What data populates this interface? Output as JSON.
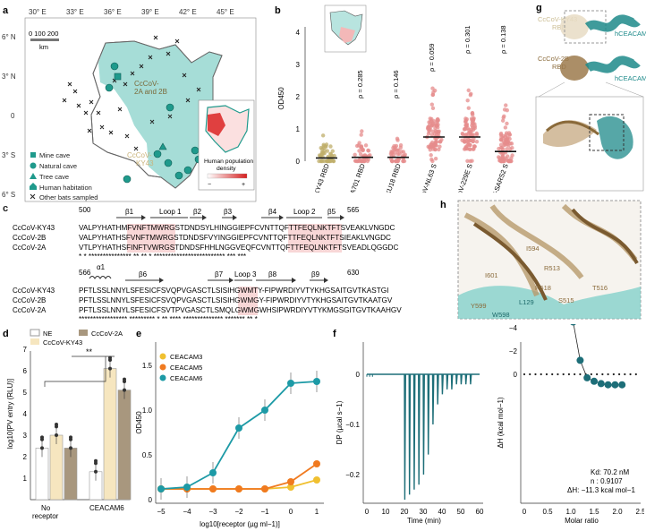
{
  "panels": {
    "a": "a",
    "b": "b",
    "c": "c",
    "d": "d",
    "e": "e",
    "f": "f",
    "g": "g",
    "h": "h"
  },
  "map": {
    "lon_ticks": [
      "30° E",
      "33° E",
      "36° E",
      "39° E",
      "42° E",
      "45° E"
    ],
    "lat_ticks": [
      "6° N",
      "3° N",
      "0",
      "3° S",
      "6° S"
    ],
    "scale_labels": "0 100 200",
    "scale_unit": "km",
    "site_2a2b": "CcCoV-\n2A and 2B",
    "site_ky43": "CcCoV-\nKY43",
    "legend": [
      "Mine cave",
      "Natural cave",
      "Tree cave",
      "Human habitation",
      "Other bats sampled"
    ],
    "inset_title": "Human population\ndensity",
    "inset_minus": "−",
    "inset_plus": "+",
    "colors": {
      "range": "#9fdcd6",
      "site": "#1f9a8c",
      "border": "#555555"
    }
  },
  "panel_b": {
    "ylabel": "OD450",
    "yticks": [
      "0",
      "1",
      "2",
      "3",
      "4"
    ],
    "groups": [
      "CcCoV-KY43 RBD",
      "BtCoV-A701 RBD",
      "BtCoV-HKU18 RBD",
      "HCoV-NL63 S",
      "HCoV-229E S",
      "HCoV-SARS2 S"
    ],
    "rho": [
      "ρ = 0.285",
      "ρ = 0.146",
      "ρ = 0.059",
      "ρ = 0.301",
      "ρ = 0.138"
    ],
    "medians": [
      0.1,
      0.12,
      0.12,
      0.75,
      0.75,
      0.3
    ],
    "colors": [
      "#bfae6a",
      "#e58c8c",
      "#e58c8c",
      "#e58c8c",
      "#e58c8c",
      "#e58c8c"
    ]
  },
  "panel_c": {
    "row1_start": "500",
    "row1_end": "565",
    "row2_start": "566",
    "row2_end": "630",
    "labels": [
      "CcCoV-KY43",
      "CcCoV-2B",
      "CcCoV-2A"
    ],
    "row1": [
      "VALPYHATHMFVNFTMWRGSTDNDSYLHINGGIEPFCVNTTQFTTFEQLNKTFTSVEAKLVNGDC",
      "VALPYHATHSFVNFTMWRGSTDNDSFVYINGGIEPFCVNTTQFTTFEQLNKTFTSIEAKLVNGDC",
      "VTLPYHATHSFINFTVWRGSTDNDSFHHLNGGVEQFCVNTTQFTTFEQLNKTFTSVEADLQGGDC"
    ],
    "row1_stars": "* * ***************       ** ** *  *************************  *** ***",
    "row2": [
      "PFTLSSLNNYLSFESICFSVQPVGASCTLSISIHGWMTY-FIPWRDIYVTYKHGSAITGVTKASTGI",
      "PFTLSSLNNYLSFESICFSVQPVGASCTLSISIHGWMGY-FIPWRDIYVTYKHGSAITGVTKAATGV",
      "PFTLSSLNNYLSFESICFSVTPVGASCTLSMQLGWMGWHSIPWRDIYVTYKMGSGITGVTKAAHGV"
    ],
    "row2_stars": "***************** ********* *  ** **** ************** ******* ** *",
    "features": [
      "β1",
      "Loop 1",
      "β2",
      "β3",
      "β4",
      "Loop 2",
      "β5",
      "α1",
      "β6",
      "β7",
      "Loop 3",
      "β8",
      "β9"
    ]
  },
  "panel_d": {
    "ylabel": "log10[PV entry (RLU)]",
    "yticks": [
      "1",
      "2",
      "3",
      "4",
      "5",
      "6",
      "7"
    ],
    "legend": [
      "NE",
      "CcCoV-KY43",
      "CcCoV-2A"
    ],
    "groups": [
      "No\nreceptor",
      "CEACAM6"
    ],
    "values": {
      "NE": [
        2.4,
        1.3
      ],
      "CcCoV-KY43": [
        3.0,
        6.1
      ],
      "CcCoV-2A": [
        2.4,
        5.1
      ]
    },
    "sig": "**"
  },
  "panel_e": {
    "ylabel": "OD450",
    "xlabel": "log10[receptor (µg ml−1)]",
    "xticks": [
      "−5",
      "−4",
      "−3",
      "−2",
      "−1",
      "0",
      "1"
    ],
    "yticks": [
      "0",
      "0.5",
      "1.0",
      "1.5"
    ],
    "legend": [
      "CEACAM3",
      "CEACAM5",
      "CEACAM6"
    ],
    "colors": [
      "#f0c030",
      "#f07a20",
      "#1d9aa6"
    ],
    "x": [
      -5,
      -4,
      -3,
      -2,
      -1,
      0,
      1
    ],
    "series": [
      {
        "name": "CEACAM3",
        "values": [
          0.12,
          0.12,
          0.12,
          0.12,
          0.12,
          0.14,
          0.22
        ]
      },
      {
        "name": "CEACAM5",
        "values": [
          0.12,
          0.12,
          0.12,
          0.12,
          0.12,
          0.2,
          0.4
        ]
      },
      {
        "name": "CEACAM6",
        "values": [
          0.12,
          0.14,
          0.3,
          0.8,
          1.0,
          1.3,
          1.32
        ]
      }
    ]
  },
  "panel_f": {
    "dp_ylabel": "DP (µcal s−1)",
    "dp_yticks": [
      "0",
      "−0.1",
      "−0.2"
    ],
    "dp_xticks": [
      "0",
      "10",
      "20",
      "30",
      "40",
      "50",
      "60"
    ],
    "dp_xlabel": "Time (min)",
    "h_ylabel": "ΔH (kcal mol−1)",
    "h_yticks": [
      "0",
      "−2",
      "−4",
      "−6",
      "−8",
      "−10"
    ],
    "h_xticks": [
      "0",
      "0.5",
      "1.0",
      "1.5",
      "2.0",
      "2.5"
    ],
    "h_xlabel": "Molar ratio",
    "kd": "Kd: 70.2 nM",
    "n": "n : 0.9107",
    "dh": "ΔH: −11.3 kcal mol−1",
    "points_x": [
      0.15,
      0.3,
      0.45,
      0.6,
      0.75,
      0.9,
      1.05,
      1.2,
      1.35,
      1.5,
      1.65,
      1.8,
      1.95,
      2.1
    ],
    "points_y": [
      -10.8,
      -10.6,
      -10.3,
      -9.8,
      -9.0,
      -7.7,
      -4.5,
      -1.2,
      0.3,
      0.6,
      0.8,
      0.9,
      0.9,
      0.9
    ]
  },
  "panel_g": {
    "ky43": "CcCoV-KY43\nRBD",
    "c2b": "CcCoV-2B\nRBD",
    "ceacam": "hCEACAM6"
  },
  "panel_h": {
    "residues": [
      "I594",
      "R513",
      "I601",
      "R518",
      "T516",
      "Y599",
      "L129",
      "S515",
      "W598"
    ]
  }
}
